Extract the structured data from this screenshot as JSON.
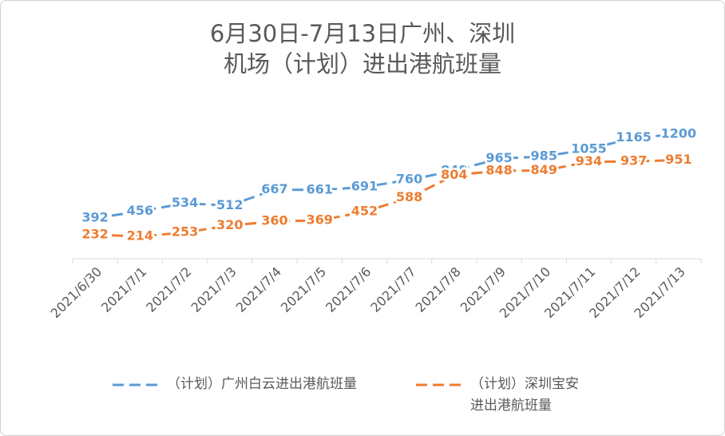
{
  "chart_data": {
    "type": "line",
    "title": "6月30日-7月13日广州、深圳\n机场（计划）进出港航班量",
    "categories": [
      "2021/6/30",
      "2021/7/1",
      "2021/7/2",
      "2021/7/3",
      "2021/7/4",
      "2021/7/5",
      "2021/7/6",
      "2021/7/7",
      "2021/7/8",
      "2021/7/9",
      "2021/7/10",
      "2021/7/11",
      "2021/7/12",
      "2021/7/13"
    ],
    "series": [
      {
        "name": "（计划）广州白云进出港航班量",
        "color": "#5b9bd5",
        "values": [
          392,
          456,
          534,
          512,
          667,
          661,
          691,
          760,
          848,
          965,
          985,
          1055,
          1165,
          1200
        ]
      },
      {
        "name": "（计划）深圳宝安\n进出港航班量",
        "color": "#ed7d31",
        "values": [
          232,
          214,
          253,
          320,
          360,
          369,
          452,
          588,
          804,
          848,
          849,
          934,
          937,
          951
        ]
      }
    ],
    "ylim": [
      0,
      1400
    ],
    "dashed": true,
    "data_labels": true
  }
}
